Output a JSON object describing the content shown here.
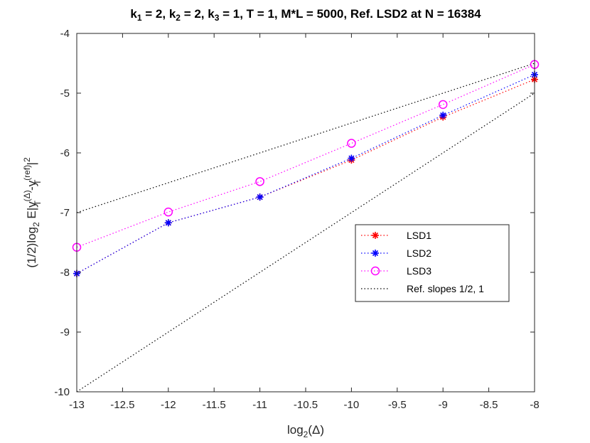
{
  "chart_data": {
    "type": "line",
    "title_parts": {
      "k1": "k",
      "k1_sub": "1",
      "k1_val": " = 2, ",
      "k2": "k",
      "k2_sub": "2",
      "k2_val": " = 2, ",
      "k3": "k",
      "k3_sub": "3",
      "k3_rest": " = 1, T = 1, M*L  = 5000, Ref. LSD2 at N = 16384"
    },
    "xlabel_parts": {
      "main": "log",
      "sub": "2",
      "rest": "(Δ)"
    },
    "ylabel_parts": {
      "a": "(1/2)log",
      "a_sub": "2",
      "b": " E|y",
      "b_sup": "(Δ)",
      "b_sub": "T",
      "c": "-y",
      "c_sup": "(ref)",
      "c_sub": "T",
      "d": "|",
      "d_sup": "2"
    },
    "xlim": [
      -13,
      -8
    ],
    "ylim": [
      -10,
      -4
    ],
    "xticks": [
      "-13",
      "-12.5",
      "-12",
      "-11.5",
      "-11",
      "-10.5",
      "-10",
      "-9.5",
      "-9",
      "-8.5",
      "-8"
    ],
    "yticks": [
      "-4",
      "-5",
      "-6",
      "-7",
      "-8",
      "-9",
      "-10"
    ],
    "series": [
      {
        "name": "LSD1",
        "color": "#ff0000",
        "marker": "asterisk",
        "x": [
          -13,
          -12,
          -11,
          -10,
          -9,
          -8
        ],
        "y": [
          -8.02,
          -7.17,
          -6.74,
          -6.12,
          -5.4,
          -4.77
        ]
      },
      {
        "name": "LSD2",
        "color": "#0000ff",
        "marker": "asterisk",
        "x": [
          -13,
          -12,
          -11,
          -10,
          -9,
          -8
        ],
        "y": [
          -8.02,
          -7.17,
          -6.74,
          -6.09,
          -5.37,
          -4.69
        ]
      },
      {
        "name": "LSD3",
        "color": "#ff00ff",
        "marker": "circle",
        "x": [
          -13,
          -12,
          -11,
          -10,
          -9,
          -8
        ],
        "y": [
          -7.58,
          -6.99,
          -6.48,
          -5.84,
          -5.19,
          -4.52
        ]
      },
      {
        "name": "Ref. slopes 1/2, 1",
        "color": "#000000",
        "marker": "none",
        "lines": [
          {
            "x": [
              -13,
              -8
            ],
            "y": [
              -7.0,
              -4.5
            ]
          },
          {
            "x": [
              -13,
              -8
            ],
            "y": [
              -10.0,
              -5.0
            ]
          }
        ]
      }
    ],
    "legend": {
      "location": "right",
      "entries": [
        "LSD1",
        "LSD2",
        "LSD3",
        "Ref. slopes 1/2, 1"
      ]
    }
  }
}
